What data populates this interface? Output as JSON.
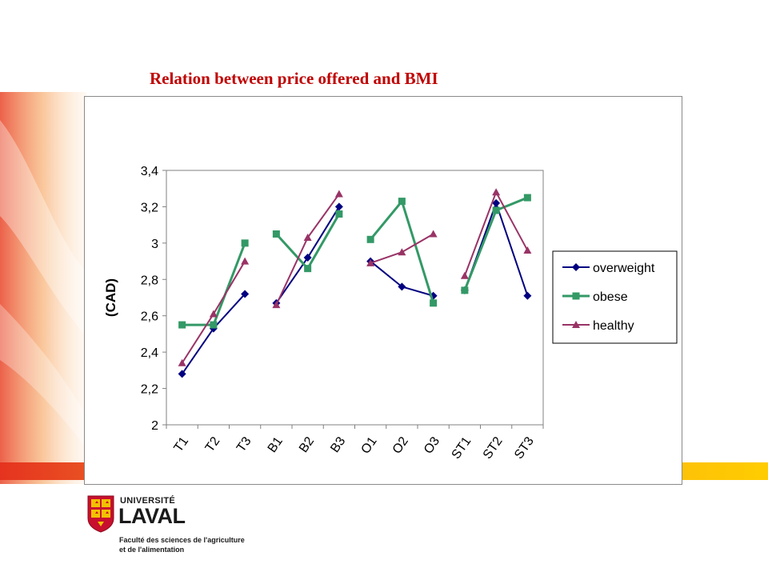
{
  "slide": {
    "title": "Relation between price offered and BMI"
  },
  "logo": {
    "university_small": "UNIVERSITÉ",
    "university_big": "LAVAL",
    "faculty_line1": "Faculté des sciences de l'agriculture",
    "faculty_line2": "et de l'alimentation"
  },
  "colors": {
    "title": "#c00000",
    "overweight": "#000080",
    "obese": "#339966",
    "healthy": "#993366",
    "accent_bar": "#ffcc00"
  },
  "chart_data": {
    "type": "line",
    "title": "",
    "xlabel": "",
    "ylabel": "(CAD)",
    "ylim": [
      2,
      3.4
    ],
    "yticks": [
      "2",
      "2,2",
      "2,4",
      "2,6",
      "2,8",
      "3",
      "3,2",
      "3,4"
    ],
    "ytick_values": [
      2,
      2.2,
      2.4,
      2.6,
      2.8,
      3,
      3.2,
      3.4
    ],
    "categories": [
      "T1",
      "T2",
      "T3",
      "B1",
      "B2",
      "B3",
      "O1",
      "O2",
      "O3",
      "ST1",
      "ST2",
      "ST3"
    ],
    "groups": [
      [
        0,
        1,
        2
      ],
      [
        3,
        4,
        5
      ],
      [
        6,
        7,
        8
      ],
      [
        9,
        10,
        11
      ]
    ],
    "grid": false,
    "legend_position": "right",
    "series": [
      {
        "name": "overweight",
        "marker": "diamond",
        "color": "#000080",
        "values": [
          2.28,
          2.53,
          2.72,
          2.67,
          2.92,
          3.2,
          2.9,
          2.76,
          2.71,
          2.74,
          3.22,
          2.71
        ]
      },
      {
        "name": "obese",
        "marker": "square",
        "color": "#339966",
        "values": [
          2.55,
          2.55,
          3.0,
          3.05,
          2.86,
          3.16,
          3.02,
          3.23,
          2.67,
          2.74,
          3.18,
          3.25
        ]
      },
      {
        "name": "healthy",
        "marker": "triangle",
        "color": "#993366",
        "values": [
          2.34,
          2.61,
          2.9,
          2.66,
          3.03,
          3.27,
          2.89,
          2.95,
          3.05,
          2.82,
          3.28,
          2.96
        ]
      }
    ]
  }
}
